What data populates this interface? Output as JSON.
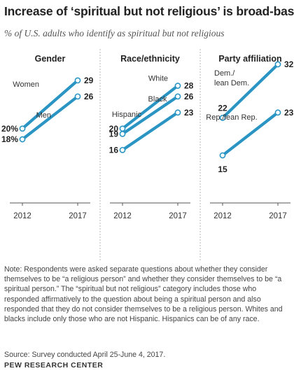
{
  "title": "Increase of ‘spiritual but not religious’ is broad-based",
  "subtitle": "% of U.S. adults who identify as spiritual but not religious",
  "note": "Note: Respondents were asked separate questions about whether they consider themselves to be “a religious person” and whether they consider themselves to be “a spiritual person.” The “spiritual but not religious” category includes those who responded affirmatively to the question about being a spiritual person and also responded that they do not consider themselves to be a religious person. Whites and blacks include only those who are not Hispanic. Hispanics can be of any race.",
  "source": "Source: Survey conducted April 25-June 4, 2017.",
  "brand": "PEW RESEARCH CENTER",
  "colors": {
    "line": "#2a94c3",
    "divider": "#b9b9b9",
    "axis": "#555555"
  },
  "chart_data": [
    {
      "type": "line",
      "title": "Gender",
      "x": [
        "2012",
        "2017"
      ],
      "series": [
        {
          "name": "Women",
          "values": [
            20,
            29
          ],
          "start_label": "20%",
          "end_label": "29"
        },
        {
          "name": "Men",
          "values": [
            18,
            26
          ],
          "start_label": "18%",
          "end_label": "26"
        }
      ]
    },
    {
      "type": "line",
      "title": "Race/ethnicity",
      "x": [
        "2012",
        "2017"
      ],
      "series": [
        {
          "name": "White",
          "values": [
            20,
            28
          ],
          "start_label": "20",
          "end_label": "28"
        },
        {
          "name": "Black",
          "values": [
            19,
            26
          ],
          "start_label": "19",
          "end_label": "26"
        },
        {
          "name": "Hispanic",
          "values": [
            16,
            23
          ],
          "start_label": "16",
          "end_label": "23"
        }
      ]
    },
    {
      "type": "line",
      "title": "Party affiliation",
      "x": [
        "2012",
        "2017"
      ],
      "series": [
        {
          "name": "Dem./lean Dem.",
          "name_lines": [
            "Dem./",
            "lean Dem."
          ],
          "values": [
            22,
            32
          ],
          "start_label": "22",
          "end_label": "32"
        },
        {
          "name": "Rep./lean Rep.",
          "values": [
            15,
            23
          ],
          "start_label": "15",
          "end_label": "23"
        }
      ]
    }
  ]
}
